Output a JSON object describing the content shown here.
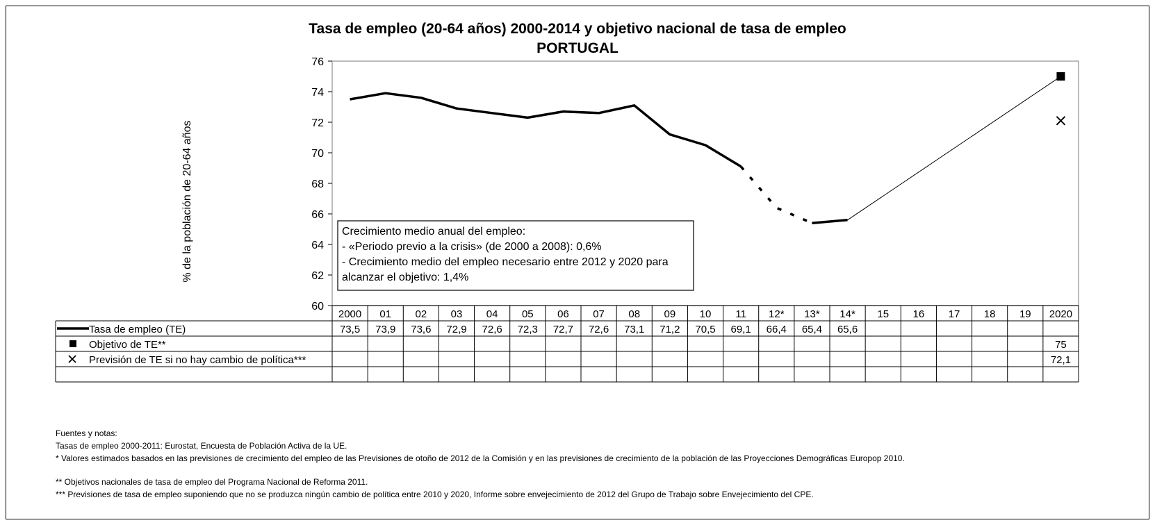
{
  "chart_data": {
    "type": "line",
    "title": "Tasa de empleo (20-64 años) 2000-2014 y objetivo nacional de tasa de empleo",
    "subtitle": "PORTUGAL",
    "ylabel": "% de la población de 20-64 años",
    "ylim": [
      60,
      76
    ],
    "yticks": [
      "60",
      "62",
      "64",
      "66",
      "68",
      "70",
      "72",
      "74",
      "76"
    ],
    "categories": [
      "2000",
      "01",
      "02",
      "03",
      "04",
      "05",
      "06",
      "07",
      "08",
      "09",
      "10",
      "11",
      "12*",
      "13*",
      "14*",
      "15",
      "16",
      "17",
      "18",
      "19",
      "2020"
    ],
    "series": [
      {
        "name": "Tasa de empleo (TE)",
        "marker": "line",
        "values": [
          73.5,
          73.9,
          73.6,
          72.9,
          72.6,
          72.3,
          72.7,
          72.6,
          73.1,
          71.2,
          70.5,
          69.1,
          66.4,
          65.4,
          65.6,
          null,
          null,
          null,
          null,
          null,
          null
        ],
        "labels": [
          "73,5",
          "73,9",
          "73,6",
          "72,9",
          "72,6",
          "72,3",
          "72,7",
          "72,6",
          "73,1",
          "71,2",
          "70,5",
          "69,1",
          "66,4",
          "65,4",
          "65,6",
          "",
          "",
          "",
          "",
          "",
          ""
        ]
      },
      {
        "name": "Objetivo de TE**",
        "marker": "square",
        "values": [
          null,
          null,
          null,
          null,
          null,
          null,
          null,
          null,
          null,
          null,
          null,
          null,
          null,
          null,
          null,
          null,
          null,
          null,
          null,
          null,
          75
        ],
        "labels": [
          "",
          "",
          "",
          "",
          "",
          "",
          "",
          "",
          "",
          "",
          "",
          "",
          "",
          "",
          "",
          "",
          "",
          "",
          "",
          "",
          "75"
        ]
      },
      {
        "name": "Previsión de TE si no hay cambio de política***",
        "marker": "cross",
        "values": [
          null,
          null,
          null,
          null,
          null,
          null,
          null,
          null,
          null,
          null,
          null,
          null,
          null,
          null,
          null,
          null,
          null,
          null,
          null,
          null,
          72.1
        ],
        "labels": [
          "",
          "",
          "",
          "",
          "",
          "",
          "",
          "",
          "",
          "",
          "",
          "",
          "",
          "",
          "",
          "",
          "",
          "",
          "",
          "",
          "72,1"
        ]
      }
    ],
    "annotation": [
      "Crecimiento medio anual del empleo:",
      "- «Periodo previo a la crisis» (de 2000 a 2008): 0,6%",
      "- Crecimiento medio del empleo necesario entre 2012 y 2020 para",
      "alcanzar el objetivo: 1,4%"
    ],
    "colors": {
      "line": "#000000",
      "plot_border": "#a6a6a6",
      "table_border": "#000000"
    }
  },
  "notes": [
    "Fuentes y notas:",
    "Tasas de empleo 2000-2011: Eurostat, Encuesta de Población Activa de la UE.",
    "* Valores estimados basados en las previsiones de crecimiento del empleo de las Previsiones de otoño de 2012 de la Comisión y en las previsiones de crecimiento de la población de las Proyecciones Demográficas  Europop 2010.",
    "** Objetivos nacionales de tasa de empleo del Programa Nacional de Reforma 2011.",
    "*** Previsiones de tasa de empleo suponiendo que no se produzca ningún cambio de política entre 2010 y 2020, Informe sobre envejecimiento de 2012 del Grupo de Trabajo sobre Envejecimiento del CPE."
  ]
}
